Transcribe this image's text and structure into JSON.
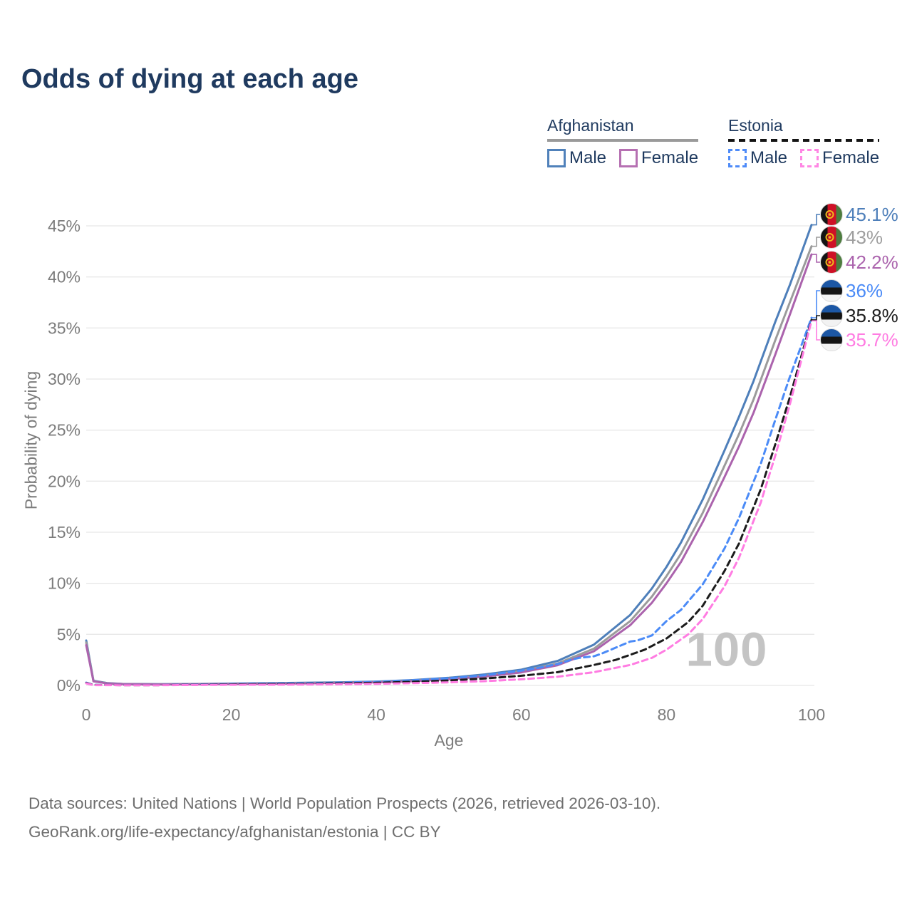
{
  "title": "Odds of dying at each age",
  "legend": {
    "groups": [
      {
        "name": "Afghanistan",
        "line_style": "solid",
        "underline_color": "#9a9a9a",
        "items": [
          {
            "label": "Male",
            "color": "#5081ba"
          },
          {
            "label": "Female",
            "color": "#b670b2"
          }
        ]
      },
      {
        "name": "Estonia",
        "line_style": "dashed",
        "underline_color": "#141414",
        "items": [
          {
            "label": "Male",
            "color": "#4e8bf8"
          },
          {
            "label": "Female",
            "color": "#ff87e4"
          }
        ]
      }
    ]
  },
  "chart_data": {
    "type": "line",
    "title": "Odds of dying at each age",
    "xlabel": "Age",
    "ylabel": "Probability of dying",
    "xlim": [
      0,
      100
    ],
    "ylim_pct": [
      0,
      45
    ],
    "xticks": [
      0,
      20,
      40,
      60,
      80,
      100
    ],
    "yticks_pct": [
      0,
      5,
      10,
      15,
      20,
      25,
      30,
      35,
      40,
      45
    ],
    "grid": "horizontal",
    "watermark": "100",
    "series": [
      {
        "name": "Afghanistan Male",
        "country": "Afghanistan",
        "flag": "afghanistan",
        "dash": "solid",
        "color": "#4e7fba",
        "end_label": "45.1%",
        "label_color": "#4e7fba",
        "points": [
          [
            0,
            4.4
          ],
          [
            1,
            0.45
          ],
          [
            3,
            0.22
          ],
          [
            5,
            0.15
          ],
          [
            10,
            0.12
          ],
          [
            15,
            0.14
          ],
          [
            20,
            0.18
          ],
          [
            25,
            0.22
          ],
          [
            30,
            0.26
          ],
          [
            35,
            0.31
          ],
          [
            40,
            0.38
          ],
          [
            45,
            0.52
          ],
          [
            50,
            0.75
          ],
          [
            55,
            1.08
          ],
          [
            60,
            1.55
          ],
          [
            65,
            2.4
          ],
          [
            70,
            4.0
          ],
          [
            75,
            6.9
          ],
          [
            78,
            9.5
          ],
          [
            80,
            11.6
          ],
          [
            82,
            14.0
          ],
          [
            85,
            18.2
          ],
          [
            88,
            23.0
          ],
          [
            90,
            26.3
          ],
          [
            92,
            29.8
          ],
          [
            95,
            35.6
          ],
          [
            97,
            39.2
          ],
          [
            100,
            45.1
          ]
        ]
      },
      {
        "name": "Afghanistan All",
        "country": "Afghanistan",
        "flag": "afghanistan",
        "dash": "solid",
        "color": "#9b9b9b",
        "end_label": "43%",
        "label_color": "#9e9e9e",
        "points": [
          [
            0,
            4.2
          ],
          [
            1,
            0.42
          ],
          [
            3,
            0.2
          ],
          [
            5,
            0.14
          ],
          [
            10,
            0.11
          ],
          [
            15,
            0.13
          ],
          [
            20,
            0.16
          ],
          [
            25,
            0.19
          ],
          [
            30,
            0.23
          ],
          [
            35,
            0.28
          ],
          [
            40,
            0.34
          ],
          [
            45,
            0.46
          ],
          [
            50,
            0.66
          ],
          [
            55,
            0.95
          ],
          [
            60,
            1.4
          ],
          [
            65,
            2.15
          ],
          [
            70,
            3.6
          ],
          [
            75,
            6.3
          ],
          [
            78,
            8.7
          ],
          [
            80,
            10.7
          ],
          [
            82,
            12.9
          ],
          [
            85,
            16.9
          ],
          [
            88,
            21.5
          ],
          [
            90,
            24.6
          ],
          [
            92,
            28.0
          ],
          [
            95,
            33.8
          ],
          [
            97,
            37.5
          ],
          [
            100,
            43
          ]
        ]
      },
      {
        "name": "Afghanistan Female",
        "country": "Afghanistan",
        "flag": "afghanistan",
        "dash": "solid",
        "color": "#ab63ad",
        "end_label": "42.2%",
        "label_color": "#ab63ad",
        "points": [
          [
            0,
            3.95
          ],
          [
            1,
            0.4
          ],
          [
            3,
            0.19
          ],
          [
            5,
            0.13
          ],
          [
            10,
            0.1
          ],
          [
            15,
            0.11
          ],
          [
            20,
            0.14
          ],
          [
            25,
            0.17
          ],
          [
            30,
            0.2
          ],
          [
            35,
            0.25
          ],
          [
            40,
            0.31
          ],
          [
            45,
            0.42
          ],
          [
            50,
            0.6
          ],
          [
            55,
            0.87
          ],
          [
            60,
            1.28
          ],
          [
            65,
            1.98
          ],
          [
            70,
            3.35
          ],
          [
            75,
            5.9
          ],
          [
            78,
            8.1
          ],
          [
            80,
            10.0
          ],
          [
            82,
            12.1
          ],
          [
            85,
            16.0
          ],
          [
            88,
            20.4
          ],
          [
            90,
            23.4
          ],
          [
            92,
            26.7
          ],
          [
            95,
            32.4
          ],
          [
            97,
            36.3
          ],
          [
            100,
            42.2
          ]
        ]
      },
      {
        "name": "Estonia Male",
        "country": "Estonia",
        "flag": "estonia",
        "dash": "dashed",
        "color": "#4b8bf7",
        "end_label": "36%",
        "label_color": "#4b8bf7",
        "points": [
          [
            0,
            0.28
          ],
          [
            1,
            0.05
          ],
          [
            5,
            0.04
          ],
          [
            10,
            0.04
          ],
          [
            15,
            0.09
          ],
          [
            20,
            0.15
          ],
          [
            25,
            0.18
          ],
          [
            30,
            0.22
          ],
          [
            35,
            0.28
          ],
          [
            40,
            0.36
          ],
          [
            45,
            0.5
          ],
          [
            50,
            0.7
          ],
          [
            55,
            1.0
          ],
          [
            60,
            1.45
          ],
          [
            63,
            1.8
          ],
          [
            65,
            2.1
          ],
          [
            67,
            2.55
          ],
          [
            68,
            2.7
          ],
          [
            70,
            2.85
          ],
          [
            71,
            3.1
          ],
          [
            73,
            3.7
          ],
          [
            75,
            4.3
          ],
          [
            76,
            4.4
          ],
          [
            78,
            4.9
          ],
          [
            80,
            6.3
          ],
          [
            82,
            7.4
          ],
          [
            85,
            9.9
          ],
          [
            88,
            13.4
          ],
          [
            90,
            16.4
          ],
          [
            93,
            21.7
          ],
          [
            95,
            26.0
          ],
          [
            97,
            30.2
          ],
          [
            100,
            36
          ]
        ]
      },
      {
        "name": "Estonia All",
        "country": "Estonia",
        "flag": "estonia",
        "dash": "dashed",
        "color": "#1c1c1c",
        "end_label": "35.8%",
        "label_color": "#1c1c1c",
        "points": [
          [
            0,
            0.24
          ],
          [
            1,
            0.04
          ],
          [
            5,
            0.03
          ],
          [
            10,
            0.03
          ],
          [
            15,
            0.06
          ],
          [
            20,
            0.1
          ],
          [
            25,
            0.12
          ],
          [
            30,
            0.15
          ],
          [
            35,
            0.2
          ],
          [
            40,
            0.26
          ],
          [
            45,
            0.36
          ],
          [
            50,
            0.48
          ],
          [
            55,
            0.68
          ],
          [
            60,
            0.95
          ],
          [
            65,
            1.3
          ],
          [
            70,
            2.0
          ],
          [
            73,
            2.5
          ],
          [
            75,
            3.0
          ],
          [
            77,
            3.5
          ],
          [
            80,
            4.6
          ],
          [
            83,
            6.2
          ],
          [
            85,
            7.8
          ],
          [
            88,
            11.2
          ],
          [
            90,
            13.9
          ],
          [
            93,
            19.2
          ],
          [
            95,
            23.6
          ],
          [
            97,
            28.2
          ],
          [
            100,
            35.8
          ]
        ]
      },
      {
        "name": "Estonia Female",
        "country": "Estonia",
        "flag": "estonia",
        "dash": "dashed",
        "color": "#ff7ce2",
        "end_label": "35.7%",
        "label_color": "#ff7ce2",
        "points": [
          [
            0,
            0.2
          ],
          [
            1,
            0.03
          ],
          [
            5,
            0.02
          ],
          [
            10,
            0.02
          ],
          [
            15,
            0.04
          ],
          [
            20,
            0.06
          ],
          [
            25,
            0.07
          ],
          [
            30,
            0.09
          ],
          [
            35,
            0.12
          ],
          [
            40,
            0.16
          ],
          [
            45,
            0.22
          ],
          [
            50,
            0.3
          ],
          [
            55,
            0.42
          ],
          [
            60,
            0.6
          ],
          [
            65,
            0.85
          ],
          [
            70,
            1.3
          ],
          [
            75,
            2.0
          ],
          [
            78,
            2.7
          ],
          [
            80,
            3.5
          ],
          [
            83,
            5.0
          ],
          [
            85,
            6.5
          ],
          [
            88,
            9.7
          ],
          [
            90,
            12.5
          ],
          [
            93,
            17.9
          ],
          [
            95,
            22.5
          ],
          [
            97,
            27.5
          ],
          [
            100,
            35.7
          ]
        ]
      }
    ]
  },
  "footer": {
    "line1": "Data sources: United Nations | World Population Prospects (2026, retrieved 2026-03-10).",
    "line2": "GeoRank.org/life-expectancy/afghanistan/estonia | CC BY"
  }
}
